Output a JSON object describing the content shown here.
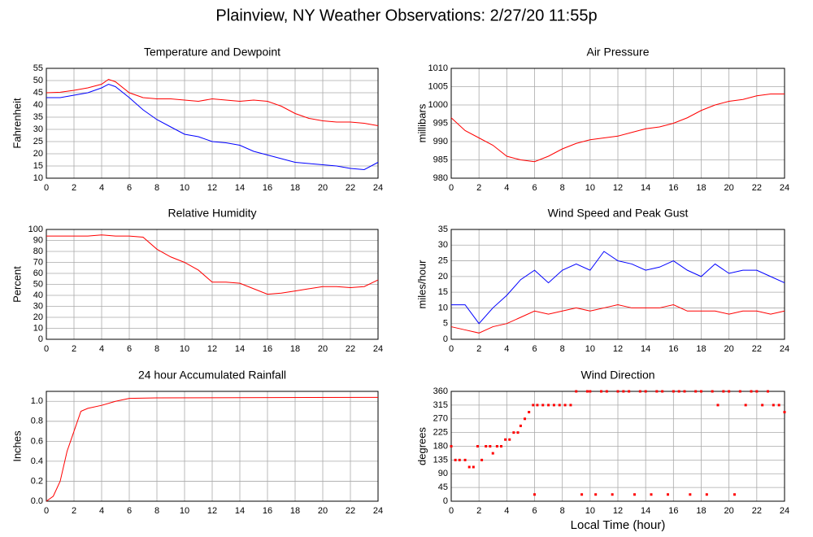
{
  "title": "Plainview, NY Weather Observations: 2/27/20 11:55p",
  "chart_data": [
    {
      "type": "line",
      "title": "Temperature and Dewpoint",
      "ylabel": "Fahrenheit",
      "x": [
        0,
        1,
        2,
        3,
        4,
        4.5,
        5,
        6,
        7,
        8,
        9,
        10,
        11,
        12,
        13,
        14,
        15,
        16,
        17,
        18,
        19,
        20,
        21,
        22,
        23,
        24
      ],
      "series": [
        {
          "color": "#ff0000",
          "values": [
            45,
            45.2,
            46,
            47,
            48.5,
            50.5,
            49.5,
            45,
            43,
            42.5,
            42.5,
            42,
            41.5,
            42.5,
            42,
            41.5,
            42,
            41.5,
            39.5,
            36.5,
            34.5,
            33.5,
            33,
            33,
            32.5,
            31.5
          ]
        },
        {
          "color": "#0000ff",
          "values": [
            43,
            43,
            44,
            45,
            47,
            48.5,
            47.5,
            43,
            38,
            34,
            31,
            28,
            27,
            25,
            24.5,
            23.5,
            21,
            19.5,
            18,
            16.5,
            16,
            15.5,
            15,
            14,
            13.5,
            16.5
          ]
        }
      ],
      "xlim": [
        0,
        24
      ],
      "xticks": [
        0,
        2,
        4,
        6,
        8,
        10,
        12,
        14,
        16,
        18,
        20,
        22,
        24
      ],
      "ylim": [
        10,
        55
      ],
      "yticks": [
        10,
        15,
        20,
        25,
        30,
        35,
        40,
        45,
        50,
        55
      ],
      "grid": true
    },
    {
      "type": "line",
      "title": "Air Pressure",
      "ylabel": "millibars",
      "x": [
        0,
        1,
        2,
        3,
        4,
        5,
        6,
        7,
        8,
        9,
        10,
        11,
        12,
        13,
        14,
        15,
        16,
        17,
        18,
        19,
        20,
        21,
        22,
        23,
        24
      ],
      "series": [
        {
          "color": "#ff0000",
          "values": [
            996.5,
            993,
            991,
            989,
            986,
            985,
            984.5,
            986,
            988,
            989.5,
            990.5,
            991,
            991.5,
            992.5,
            993.5,
            994,
            995,
            996.5,
            998.5,
            1000,
            1001,
            1001.5,
            1002.5,
            1003,
            1003
          ]
        }
      ],
      "xlim": [
        0,
        24
      ],
      "xticks": [
        0,
        2,
        4,
        6,
        8,
        10,
        12,
        14,
        16,
        18,
        20,
        22,
        24
      ],
      "ylim": [
        980,
        1010
      ],
      "yticks": [
        980,
        985,
        990,
        995,
        1000,
        1005,
        1010
      ],
      "grid": true
    },
    {
      "type": "line",
      "title": "Relative Humidity",
      "ylabel": "Percent",
      "x": [
        0,
        1,
        2,
        3,
        4,
        5,
        6,
        7,
        8,
        9,
        10,
        11,
        12,
        13,
        14,
        15,
        16,
        17,
        18,
        19,
        20,
        21,
        22,
        23,
        24
      ],
      "series": [
        {
          "color": "#ff0000",
          "values": [
            94,
            94,
            94,
            94,
            95,
            94,
            94,
            93,
            82,
            75,
            70,
            63,
            52,
            52,
            51,
            46,
            41,
            42,
            44,
            46,
            48,
            48,
            47,
            48,
            54
          ]
        }
      ],
      "xlim": [
        0,
        24
      ],
      "xticks": [
        0,
        2,
        4,
        6,
        8,
        10,
        12,
        14,
        16,
        18,
        20,
        22,
        24
      ],
      "ylim": [
        0,
        100
      ],
      "yticks": [
        0,
        10,
        20,
        30,
        40,
        50,
        60,
        70,
        80,
        90,
        100
      ],
      "grid": true
    },
    {
      "type": "line",
      "title": "Wind Speed and Peak Gust",
      "ylabel": "miles/hour",
      "x": [
        0,
        1,
        2,
        3,
        4,
        5,
        6,
        7,
        8,
        9,
        10,
        11,
        12,
        13,
        14,
        15,
        16,
        17,
        18,
        19,
        20,
        21,
        22,
        23,
        24
      ],
      "series": [
        {
          "color": "#0000ff",
          "values": [
            11,
            11,
            5,
            10,
            14,
            19,
            22,
            18,
            22,
            24,
            22,
            28,
            25,
            24,
            22,
            23,
            25,
            22,
            20,
            24,
            21,
            22,
            22,
            20,
            18
          ]
        },
        {
          "color": "#ff0000",
          "values": [
            4,
            3,
            2,
            4,
            5,
            7,
            9,
            8,
            9,
            10,
            9,
            10,
            11,
            10,
            10,
            10,
            11,
            9,
            9,
            9,
            8,
            9,
            9,
            8,
            9
          ]
        }
      ],
      "xlim": [
        0,
        24
      ],
      "xticks": [
        0,
        2,
        4,
        6,
        8,
        10,
        12,
        14,
        16,
        18,
        20,
        22,
        24
      ],
      "ylim": [
        0,
        35
      ],
      "yticks": [
        0,
        5,
        10,
        15,
        20,
        25,
        30,
        35
      ],
      "grid": true
    },
    {
      "type": "line",
      "title": "24 hour Accumulated Rainfall",
      "ylabel": "Inches",
      "x": [
        0,
        0.5,
        1,
        1.5,
        2,
        2.5,
        3,
        4,
        5,
        6,
        8,
        24
      ],
      "series": [
        {
          "color": "#ff0000",
          "values": [
            0,
            0.05,
            0.2,
            0.5,
            0.7,
            0.9,
            0.93,
            0.96,
            1.0,
            1.03,
            1.035,
            1.04
          ]
        }
      ],
      "xlim": [
        0,
        24
      ],
      "xticks": [
        0,
        2,
        4,
        6,
        8,
        10,
        12,
        14,
        16,
        18,
        20,
        22,
        24
      ],
      "ylim": [
        0,
        1.1
      ],
      "yticks": [
        {
          "value": 0,
          "label": "0.0"
        },
        0.2,
        0.4,
        0.6,
        0.8,
        {
          "value": 1,
          "label": "1.0"
        }
      ],
      "grid": true
    },
    {
      "type": "scatter",
      "title": "Wind Direction",
      "ylabel": "degrees",
      "xlabel": "Local Time (hour)",
      "x": [
        0,
        0.3,
        0.6,
        1,
        1.3,
        1.6,
        1.9,
        2.2,
        2.5,
        2.8,
        3,
        3.3,
        3.6,
        3.9,
        4.2,
        4.5,
        4.8,
        5,
        5.3,
        5.6,
        5.9,
        6,
        6.2,
        6.6,
        7,
        7.4,
        7.8,
        8.2,
        8.6,
        9,
        9.4,
        9.8,
        10,
        10.4,
        10.8,
        11.2,
        11.6,
        12,
        12.4,
        12.8,
        13.2,
        13.6,
        14,
        14.4,
        14.8,
        15.2,
        15.6,
        16,
        16.4,
        16.8,
        17.2,
        17.6,
        18,
        18.4,
        18.8,
        19.2,
        19.6,
        20,
        20.4,
        20.8,
        21.2,
        21.6,
        22,
        22.4,
        22.8,
        23.2,
        23.6,
        24
      ],
      "series": [
        {
          "color": "#ff0000",
          "values": [
            180,
            135,
            135,
            135,
            112,
            112,
            180,
            135,
            180,
            180,
            157,
            180,
            180,
            202,
            202,
            225,
            225,
            247,
            270,
            292,
            315,
            22,
            315,
            315,
            315,
            315,
            315,
            315,
            315,
            360,
            22,
            360,
            360,
            22,
            360,
            360,
            22,
            360,
            360,
            360,
            22,
            360,
            360,
            22,
            360,
            360,
            22,
            360,
            360,
            360,
            22,
            360,
            360,
            22,
            360,
            315,
            360,
            360,
            22,
            360,
            315,
            360,
            360,
            315,
            360,
            315,
            315,
            292
          ]
        }
      ],
      "xlim": [
        0,
        24
      ],
      "xticks": [
        0,
        2,
        4,
        6,
        8,
        10,
        12,
        14,
        16,
        18,
        20,
        22,
        24
      ],
      "ylim": [
        0,
        360
      ],
      "yticks": [
        0,
        45,
        90,
        135,
        180,
        225,
        270,
        315,
        360
      ],
      "grid": true
    }
  ]
}
